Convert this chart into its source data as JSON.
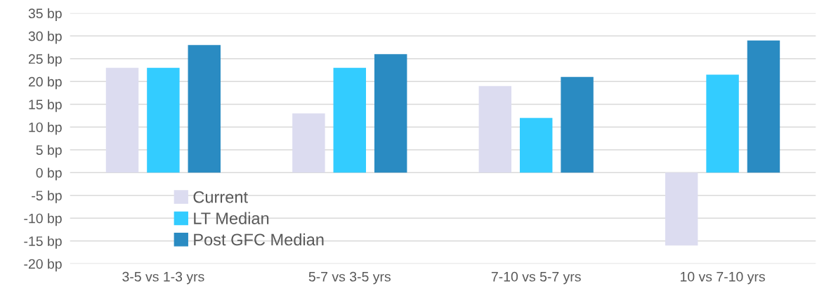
{
  "chart_data": {
    "type": "bar",
    "categories": [
      "3-5 vs 1-3 yrs",
      "5-7 vs 3-5 yrs",
      "7-10 vs 5-7 yrs",
      "10 vs 7-10 yrs"
    ],
    "series": [
      {
        "name": "Current",
        "color": "#dcdcf0",
        "values": [
          23,
          13,
          19,
          -16
        ]
      },
      {
        "name": "LT Median",
        "color": "#33ccff",
        "values": [
          23,
          23,
          12,
          21.5
        ]
      },
      {
        "name": "Post GFC Median",
        "color": "#2a8bc2",
        "values": [
          28,
          26,
          21,
          29
        ]
      }
    ],
    "ylim": [
      -20,
      35
    ],
    "yticks": [
      {
        "value": -20,
        "label": "-20 bp"
      },
      {
        "value": -15,
        "label": "-15 bp"
      },
      {
        "value": -10,
        "label": "-10 bp"
      },
      {
        "value": -5,
        "label": "-5 bp"
      },
      {
        "value": 0,
        "label": "0 bp"
      },
      {
        "value": 5,
        "label": "5 bp"
      },
      {
        "value": 10,
        "label": "10 bp"
      },
      {
        "value": 15,
        "label": "15 bp"
      },
      {
        "value": 20,
        "label": "20 bp"
      },
      {
        "value": 25,
        "label": "25 bp"
      },
      {
        "value": 30,
        "label": "30 bp"
      },
      {
        "value": 35,
        "label": "35 bp"
      }
    ],
    "grid": "y",
    "legend": "bottom left"
  }
}
